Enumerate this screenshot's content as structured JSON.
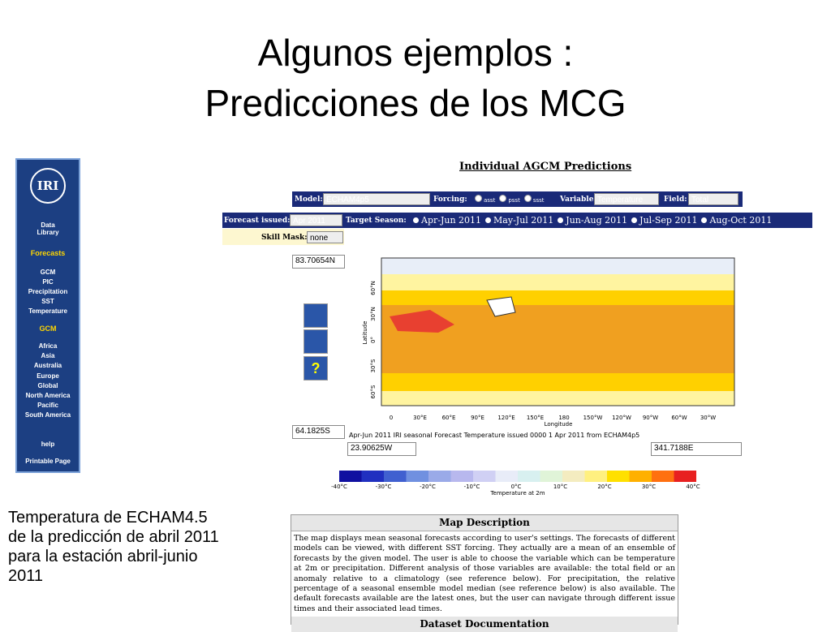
{
  "slide": {
    "title_lines": [
      "Algunos ejemplos :",
      "Predicciones de los MCG"
    ],
    "caption_lines": [
      "Temperatura de ECHAM4.5",
      "de la predicción de abril 2011",
      "para la estación abril-junio",
      "2011"
    ]
  },
  "sidebar": {
    "logo": "IRI",
    "items": [
      "Data Library",
      "Forecasts",
      "GCM",
      "PIC",
      "Precipitation",
      "SST",
      "Temperature",
      "GCM",
      "Africa",
      "Asia",
      "Australia",
      "Europe",
      "Global",
      "North America",
      "Pacific",
      "South America",
      "help",
      "Printable Page"
    ]
  },
  "form": {
    "heading": "Individual AGCM Predictions",
    "model_label": "Model:",
    "model": "ECHAM4p5",
    "forcing_label": "Forcing:",
    "forcing_options": [
      "asst",
      "psst",
      "ssst"
    ],
    "variable_label": "Variable:",
    "variable": "Temperature",
    "field_label": "Field:",
    "field": "Total",
    "issued_label": "Forecast issued:",
    "issued": "Apr 2011",
    "season_label": "Target Season:",
    "seasons": [
      "Apr-Jun 2011",
      "May-Jul 2011",
      "Jun-Aug 2011",
      "Jul-Sep 2011",
      "Aug-Oct 2011"
    ],
    "skill_label": "Skill Mask:",
    "skill": "none"
  },
  "map": {
    "north": "83.70654N",
    "south": "64.1825S",
    "west": "23.90625W",
    "east": "341.7188E",
    "caption": "Apr-Jun 2011 IRI seasonal Forecast Temperature issued 0000 1 Apr 2011 from ECHAM4p5",
    "lat_label": "Latitude",
    "lon_label": "Longitude",
    "lat_ticks": [
      "60°N",
      "30°N",
      "0°",
      "30°S",
      "60°S"
    ],
    "lon_ticks": [
      "0",
      "30°E",
      "60°E",
      "90°E",
      "120°E",
      "150°E",
      "180",
      "150°W",
      "120°W",
      "90°W",
      "60°W",
      "30°W"
    ],
    "colorbar_ticks": [
      "-40°C",
      "-30°C",
      "-20°C",
      "-10°C",
      "0°C",
      "10°C",
      "20°C",
      "30°C",
      "40°C"
    ],
    "colorbar_label": "Temperature at 2m"
  },
  "description": {
    "title": "Map Description",
    "text": "The map displays mean seasonal forecasts according to user's settings. The forecasts of different models can be viewed, with different SST forcing. They actually are a mean of an ensemble of forecasts by the given model. The user is able to choose the variable which can be temperature at 2m or precipitation. Different analysis of those variables are available: the total field or an anomaly relative to a climatology (see reference below). For precipitation, the relative percentage of a seasonal ensemble model median (see reference below) is also available. The default forecasts available are the latest ones, but the user can navigate through different issue times and their associated lead times.",
    "next_title": "Dataset Documentation"
  }
}
